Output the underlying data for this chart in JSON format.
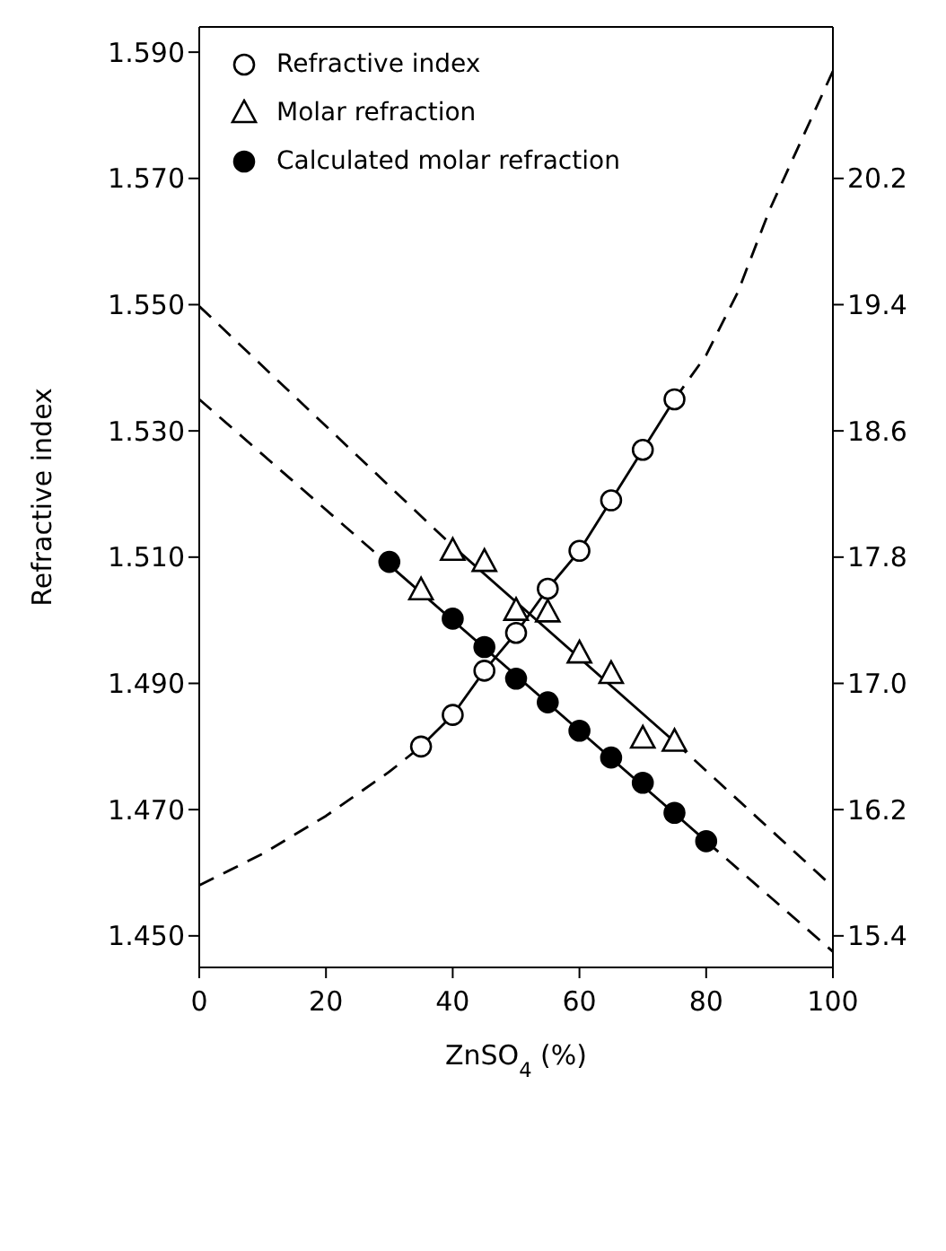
{
  "chart_data": {
    "type": "scatter",
    "xlabel": "ZnSO$_{4}$ (%)",
    "ylabel": "Refractive index",
    "xlim": [
      0,
      100
    ],
    "xticks": [
      0,
      20,
      40,
      60,
      80,
      100
    ],
    "ylim": [
      1.445,
      1.594
    ],
    "yticks": [
      {
        "value": 1.45,
        "label": "1.450"
      },
      {
        "value": 1.47,
        "label": "1.470"
      },
      {
        "value": 1.49,
        "label": "1.490"
      },
      {
        "value": 1.51,
        "label": "1.510"
      },
      {
        "value": 1.53,
        "label": "1.530"
      },
      {
        "value": 1.55,
        "label": "1.550"
      },
      {
        "value": 1.57,
        "label": "1.570"
      },
      {
        "value": 1.59,
        "label": "1.590"
      }
    ],
    "y2lim": [
      15.2,
      21.16
    ],
    "y2ticks": [
      15.4,
      16.2,
      {
        "value": 17.0,
        "label": "17.0"
      },
      17.8,
      18.6,
      19.4,
      20.2
    ],
    "legend": "top left",
    "grid": false,
    "series": [
      {
        "name": "Refractive index",
        "type": "scatter",
        "marker": "circle",
        "color": "#ffffff",
        "x": [
          35,
          40,
          45,
          50,
          55,
          60,
          65,
          70,
          75
        ],
        "values": [
          1.48,
          1.485,
          1.492,
          1.498,
          1.505,
          1.511,
          1.519,
          1.527,
          1.535
        ]
      },
      {
        "type": "line",
        "marker": "none",
        "line_style": "solid",
        "color": "#000000",
        "x": [
          35,
          40,
          45,
          50,
          55,
          60,
          65,
          70,
          75
        ],
        "values": [
          1.48,
          1.485,
          1.492,
          1.498,
          1.505,
          1.511,
          1.519,
          1.527,
          1.535
        ]
      },
      {
        "type": "line",
        "marker": "none",
        "line_style": "dashed",
        "color": "#000000",
        "x": [
          0,
          10,
          20,
          30,
          35,
          55,
          75,
          80,
          85,
          90,
          95,
          100
        ],
        "values": [
          1.458,
          1.463,
          1.469,
          1.476,
          1.48,
          null,
          1.535,
          1.542,
          1.552,
          1.565,
          1.576,
          1.587
        ]
      },
      {
        "name": "Molar refraction",
        "type": "scatter",
        "axis": "y2",
        "marker": "triangle",
        "color": "#ffffff",
        "x": [
          35,
          40,
          45,
          50,
          55,
          60,
          65,
          70,
          75
        ],
        "values": [
          17.59,
          17.84,
          17.77,
          17.46,
          17.45,
          17.19,
          17.06,
          16.65,
          16.63
        ]
      },
      {
        "type": "line",
        "axis": "y2",
        "marker": "none",
        "line_style": "solid",
        "color": "#000000",
        "x": [
          40,
          75
        ],
        "values": [
          17.87,
          16.63
        ]
      },
      {
        "type": "line",
        "axis": "y2",
        "marker": "none",
        "line_style": "dashed",
        "color": "#000000",
        "x": [
          0,
          40,
          55,
          75,
          100
        ],
        "values": [
          19.39,
          17.87,
          null,
          16.63,
          15.71
        ]
      },
      {
        "name": "Calculated molar refraction",
        "type": "scatter",
        "axis": "y2",
        "marker": "circle",
        "color": "#000000",
        "x": [
          30,
          40,
          45,
          50,
          55,
          60,
          65,
          70,
          75,
          80
        ],
        "values": [
          17.77,
          17.41,
          17.23,
          17.03,
          16.88,
          16.7,
          16.53,
          16.37,
          16.18,
          16.0
        ]
      },
      {
        "type": "line",
        "axis": "y2",
        "marker": "none",
        "line_style": "solid",
        "color": "#000000",
        "x": [
          30,
          80
        ],
        "values": [
          17.75,
          16.0
        ]
      },
      {
        "type": "line",
        "axis": "y2",
        "marker": "none",
        "line_style": "dashed",
        "color": "#000000",
        "x": [
          0,
          30,
          55,
          80,
          100
        ],
        "values": [
          18.8,
          17.75,
          null,
          16.0,
          15.3
        ]
      }
    ]
  }
}
